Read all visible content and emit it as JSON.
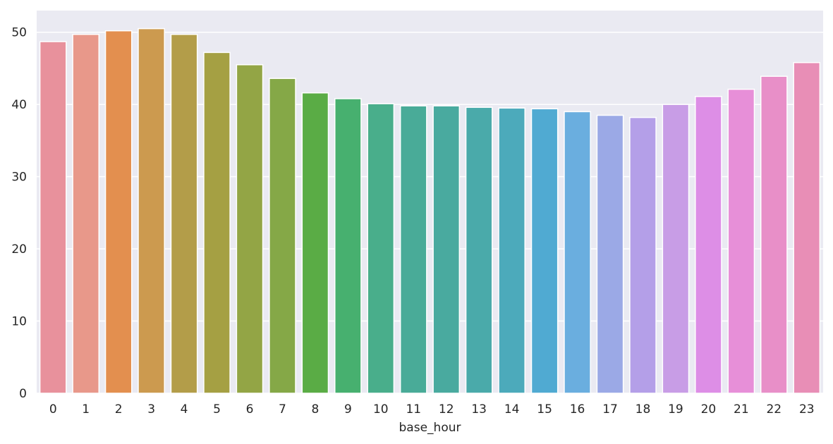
{
  "chart_data": {
    "type": "bar",
    "title": "",
    "xlabel": "base_hour",
    "ylabel": "",
    "categories": [
      "0",
      "1",
      "2",
      "3",
      "4",
      "5",
      "6",
      "7",
      "8",
      "9",
      "10",
      "11",
      "12",
      "13",
      "14",
      "15",
      "16",
      "17",
      "18",
      "19",
      "20",
      "21",
      "22",
      "23"
    ],
    "values": [
      48.7,
      49.7,
      50.2,
      50.5,
      49.7,
      47.2,
      45.5,
      43.6,
      41.6,
      40.8,
      40.1,
      39.8,
      39.8,
      39.6,
      39.5,
      39.4,
      39.0,
      38.5,
      38.2,
      40.0,
      41.1,
      42.1,
      43.9,
      45.8
    ],
    "ylim": [
      0,
      53
    ],
    "yticks": [
      0,
      10,
      20,
      30,
      40,
      50
    ],
    "grid": true,
    "legend": "none",
    "colors": [
      "#e8919c",
      "#e8988a",
      "#e38f4f",
      "#cc9a4f",
      "#b39d49",
      "#a5a043",
      "#93a545",
      "#85a847",
      "#5aac45",
      "#47b06f",
      "#49ae8b",
      "#49ab98",
      "#49aa9f",
      "#4aaaaa",
      "#4caabb",
      "#50aad2",
      "#6aaedf",
      "#9ba9e6",
      "#b49fe8",
      "#c89de6",
      "#dd8ee6",
      "#e78fd8",
      "#e88fc8",
      "#e88eb6"
    ],
    "background": "#eaeaf2",
    "gridColor": "#ffffff"
  }
}
